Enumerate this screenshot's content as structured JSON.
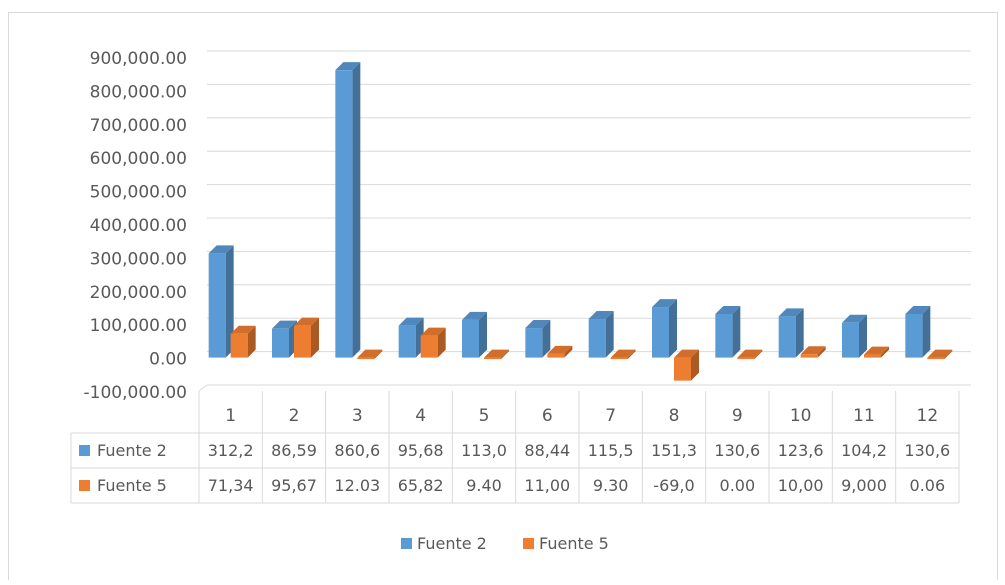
{
  "chart_data": {
    "type": "bar",
    "style": "3d-clustered-column-with-data-table",
    "categories": [
      "1",
      "2",
      "3",
      "4",
      "5",
      "6",
      "7",
      "8",
      "9",
      "10",
      "11",
      "12"
    ],
    "series": [
      {
        "name": "Fuente 2",
        "color": "#5b9bd5",
        "values": [
          312200,
          86590,
          860600,
          95680,
          113000,
          88440,
          115500,
          151300,
          130600,
          123600,
          104200,
          130600
        ],
        "table_labels": [
          "312,2",
          "86,59",
          "860,6",
          "95,68",
          "113,0",
          "88,44",
          "115,5",
          "151,3",
          "130,6",
          "123,6",
          "104,2",
          "130,6"
        ]
      },
      {
        "name": "Fuente 5",
        "color": "#ed7d31",
        "values": [
          71340,
          95670,
          12.03,
          65820,
          9.4,
          11000,
          9.3,
          -69000,
          0,
          10000,
          9000,
          0.06
        ],
        "table_labels": [
          "71,34",
          "95,67",
          "12.03",
          "65,82",
          "9.40",
          "11,00",
          "9.30",
          "-69,0",
          "0.00",
          "10,00",
          "9,000",
          "0.06"
        ]
      }
    ],
    "ylim": [
      -100000,
      900000
    ],
    "y_ticks": [
      900000,
      800000,
      700000,
      600000,
      500000,
      400000,
      300000,
      200000,
      100000,
      0,
      -100000
    ],
    "y_tick_labels": [
      "900,000.00",
      "800,000.00",
      "700,000.00",
      "600,000.00",
      "500,000.00",
      "400,000.00",
      "300,000.00",
      "200,000.00",
      "100,000.00",
      "0.00",
      "-100,000.00"
    ],
    "grid": true,
    "legend_position": "bottom",
    "title": "",
    "xlabel": "",
    "ylabel": ""
  }
}
